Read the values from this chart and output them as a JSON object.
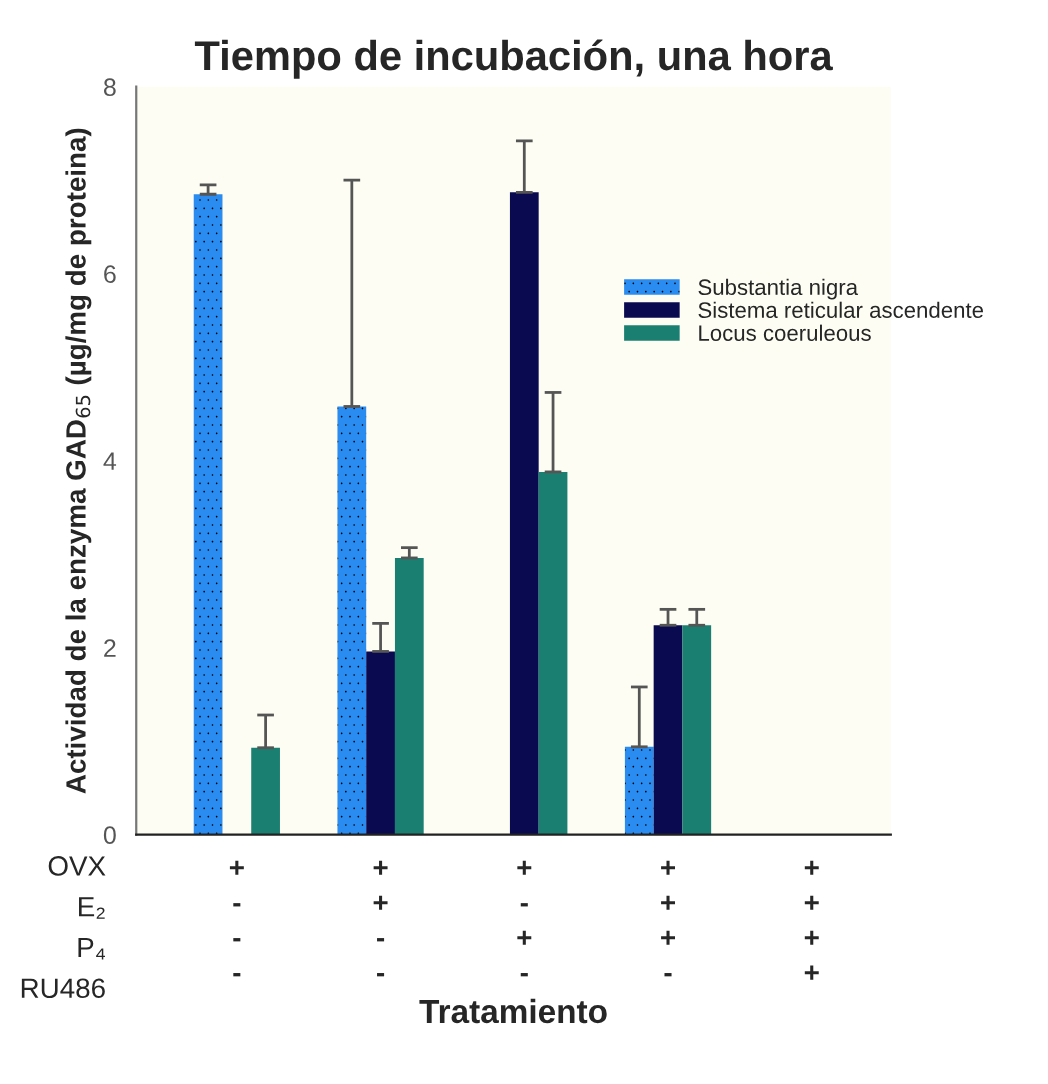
{
  "chart_data": {
    "type": "bar",
    "title": "Tiempo de incubación, una hora",
    "xlabel": "Tratamiento",
    "ylabel": "Actividad de la enzyma GAD$_{65}$ (µg/mg de proteina)",
    "categories": [
      "+\n-\n-\n-",
      "+\n+\n-\n-",
      "+\n-\n+\n-",
      "+\n+\n+\n-",
      "+\n+\n+\n+"
    ],
    "annotations": [
      "OVX",
      "E₂",
      "P₄",
      "RU486"
    ],
    "series": [
      {
        "name": "Substantia nigra",
        "color": "#2a8cf0",
        "values": [
          6.85,
          4.58,
          null,
          0.94,
          null
        ],
        "errors": [
          [
            6.85,
            6.95
          ],
          [
            4.58,
            7.0
          ],
          null,
          [
            0.94,
            1.58
          ],
          null
        ]
      },
      {
        "name": "Sistema reticular ascendente",
        "color": "#0a0a50",
        "values": [
          null,
          1.96,
          6.87,
          2.24,
          null
        ],
        "errors": [
          null,
          [
            1.96,
            2.26
          ],
          [
            6.87,
            7.42
          ],
          [
            2.24,
            2.41
          ],
          null
        ]
      },
      {
        "name": "Locus coeruleous",
        "color": "#1a7f70",
        "values": [
          0.93,
          2.96,
          3.88,
          2.24,
          null
        ],
        "errors": [
          [
            0.93,
            1.28
          ],
          [
            2.96,
            3.07
          ],
          [
            3.88,
            4.73
          ],
          [
            2.24,
            2.41
          ],
          null
        ]
      }
    ],
    "ylim": [
      0,
      8
    ],
    "yticks": [
      0,
      2,
      4,
      6,
      8
    ],
    "grid": false,
    "legend": "top right"
  }
}
